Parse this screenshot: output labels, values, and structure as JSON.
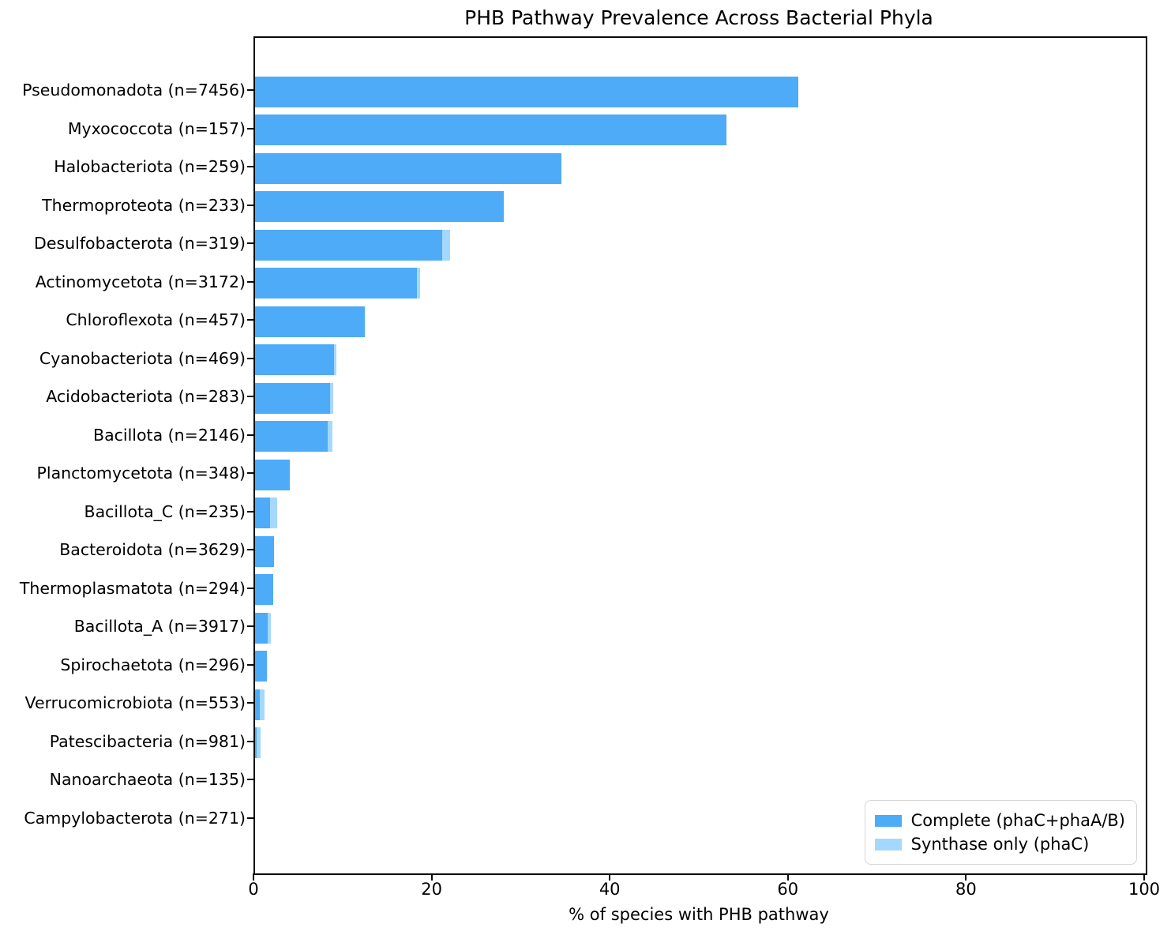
{
  "title": "PHB Pathway Prevalence Across Bacterial Phyla",
  "colors": {
    "complete": "#4dabf7",
    "synthase_only": "#a5d8ff",
    "spine": "#0a0a0a"
  },
  "legend": [
    {
      "label": "Complete (phaC+phaA/B)",
      "color": "#4dabf7",
      "icon": "legend-swatch-complete"
    },
    {
      "label": "Synthase only (phaC)",
      "color": "#a5d8ff",
      "icon": "legend-swatch-synthase"
    }
  ],
  "chart_data": {
    "type": "bar",
    "orientation": "horizontal",
    "title": "PHB Pathway Prevalence Across Bacterial Phyla",
    "xlabel": "% of species with PHB pathway",
    "ylabel": "",
    "xlim": [
      0,
      100
    ],
    "xticks": [
      0,
      20,
      40,
      60,
      80,
      100
    ],
    "grid": false,
    "legend_position": "lower right",
    "categories": [
      "Pseudomonadota (n=7456)",
      "Myxococcota (n=157)",
      "Halobacteriota (n=259)",
      "Thermoproteota (n=233)",
      "Desulfobacterota (n=319)",
      "Actinomycetota (n=3172)",
      "Chloroflexota (n=457)",
      "Cyanobacteriota (n=469)",
      "Acidobacteriota (n=283)",
      "Bacillota (n=2146)",
      "Planctomycetota (n=348)",
      "Bacillota_C (n=235)",
      "Bacteroidota (n=3629)",
      "Thermoplasmatota (n=294)",
      "Bacillota_A (n=3917)",
      "Spirochaetota (n=296)",
      "Verrucomicrobiota (n=553)",
      "Patescibacteria (n=981)",
      "Nanoarchaeota (n=135)",
      "Campylobacterota (n=271)"
    ],
    "series": [
      {
        "name": "Complete (phaC+phaA/B)",
        "stack": "phb",
        "color": "#4dabf7",
        "values": [
          61.0,
          52.9,
          34.4,
          27.9,
          21.0,
          18.2,
          12.3,
          8.9,
          8.4,
          8.2,
          3.9,
          1.7,
          2.1,
          2.0,
          1.4,
          1.3,
          0.55,
          0.2,
          0,
          0
        ]
      },
      {
        "name": "Synthase only (phaC)",
        "stack": "phb",
        "color": "#a5d8ff",
        "values": [
          0,
          0,
          0,
          0,
          0.9,
          0.3,
          0,
          0.2,
          0.4,
          0.5,
          0,
          0.8,
          0,
          0,
          0.35,
          0,
          0.55,
          0.4,
          0,
          0
        ]
      }
    ]
  }
}
